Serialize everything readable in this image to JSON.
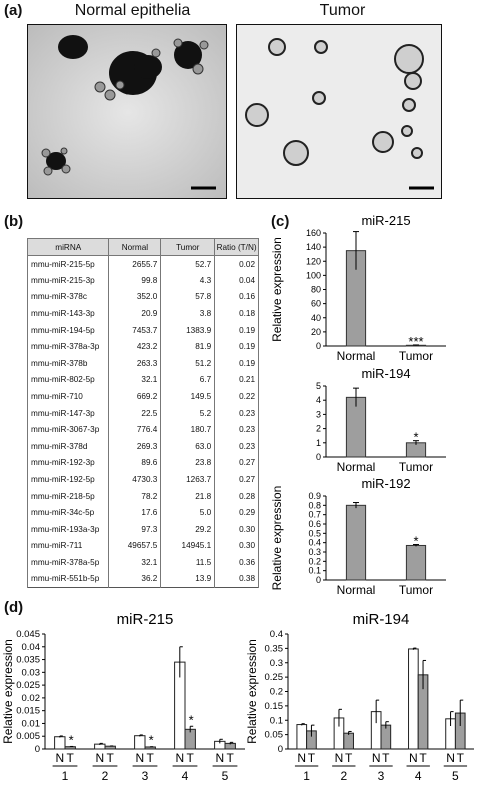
{
  "panels": {
    "a": "(a)",
    "b": "(b)",
    "c": "(c)",
    "d": "(d)"
  },
  "images": {
    "left_title": "Normal epithelia",
    "right_title": "Tumor"
  },
  "table": {
    "headers": [
      "miRNA",
      "Normal",
      "Tumor",
      "Ratio (T/N)"
    ],
    "rows": [
      [
        "mmu-miR-215-5p",
        "2655.7",
        "52.7",
        "0.02"
      ],
      [
        "mmu-miR-215-3p",
        "99.8",
        "4.3",
        "0.04"
      ],
      [
        "mmu-miR-378c",
        "352.0",
        "57.8",
        "0.16"
      ],
      [
        "mmu-miR-143-3p",
        "20.9",
        "3.8",
        "0.18"
      ],
      [
        "mmu-miR-194-5p",
        "7453.7",
        "1383.9",
        "0.19"
      ],
      [
        "mmu-miR-378a-3p",
        "423.2",
        "81.9",
        "0.19"
      ],
      [
        "mmu-miR-378b",
        "263.3",
        "51.2",
        "0.19"
      ],
      [
        "mmu-miR-802-5p",
        "32.1",
        "6.7",
        "0.21"
      ],
      [
        "mmu-miR-710",
        "669.2",
        "149.5",
        "0.22"
      ],
      [
        "mmu-miR-147-3p",
        "22.5",
        "5.2",
        "0.23"
      ],
      [
        "mmu-miR-3067-3p",
        "776.4",
        "180.7",
        "0.23"
      ],
      [
        "mmu-miR-378d",
        "269.3",
        "63.0",
        "0.23"
      ],
      [
        "mmu-miR-192-3p",
        "89.6",
        "23.8",
        "0.27"
      ],
      [
        "mmu-miR-192-5p",
        "4730.3",
        "1263.7",
        "0.27"
      ],
      [
        "mmu-miR-218-5p",
        "78.2",
        "21.8",
        "0.28"
      ],
      [
        "mmu-miR-34c-5p",
        "17.6",
        "5.0",
        "0.29"
      ],
      [
        "mmu-miR-193a-3p",
        "97.3",
        "29.2",
        "0.30"
      ],
      [
        "mmu-miR-711",
        "49657.5",
        "14945.1",
        "0.30"
      ],
      [
        "mmu-miR-378a-5p",
        "32.1",
        "11.5",
        "0.36"
      ],
      [
        "mmu-miR-551b-5p",
        "36.2",
        "13.9",
        "0.38"
      ]
    ]
  },
  "chart_data": [
    {
      "type": "bar",
      "title": "miR-215",
      "ylabel": "Relative expression",
      "categories": [
        "Normal",
        "Tumor"
      ],
      "values": [
        135,
        1
      ],
      "errors": [
        27,
        0.5
      ],
      "ylim": [
        0,
        160
      ],
      "yticks": [
        "0",
        "20",
        "40",
        "60",
        "80",
        "100",
        "120",
        "140",
        "160"
      ],
      "annotations": [
        "",
        "***"
      ],
      "color": "#9e9e9e"
    },
    {
      "type": "bar",
      "title": "miR-194",
      "ylabel": "",
      "categories": [
        "Normal",
        "Tumor"
      ],
      "values": [
        4.2,
        1.0
      ],
      "errors": [
        0.65,
        0.15
      ],
      "ylim": [
        0,
        5
      ],
      "yticks": [
        "0",
        "1",
        "2",
        "3",
        "4",
        "5"
      ],
      "annotations": [
        "",
        "*"
      ],
      "color": "#9e9e9e"
    },
    {
      "type": "bar",
      "title": "miR-192",
      "ylabel": "Relative expression",
      "categories": [
        "Normal",
        "Tumor"
      ],
      "values": [
        0.8,
        0.37
      ],
      "errors": [
        0.03,
        0.01
      ],
      "ylim": [
        0,
        0.9
      ],
      "yticks": [
        "0",
        "0.1",
        "0.2",
        "0.3",
        "0.4",
        "0.5",
        "0.6",
        "0.7",
        "0.8",
        "0.9"
      ],
      "annotations": [
        "",
        "*"
      ],
      "color": "#9e9e9e"
    },
    {
      "type": "bar",
      "title": "miR-215",
      "ylabel": "Relative expression",
      "categories": [
        "1",
        "2",
        "3",
        "4",
        "5"
      ],
      "sublabels": [
        "N",
        "T"
      ],
      "series": [
        {
          "values": [
            0.0048,
            0.0019,
            0.0052,
            0.034,
            0.003
          ],
          "errors": [
            0.0003,
            0.0003,
            0.0003,
            0.006,
            0.0008
          ],
          "color": "#ffffff"
        },
        {
          "values": [
            0.0009,
            0.0011,
            0.0008,
            0.0077,
            0.0022
          ],
          "errors": [
            0.0001,
            0.0001,
            0.0001,
            0.0012,
            0.0004
          ],
          "color": "#9e9e9e"
        }
      ],
      "annotations": [
        "*",
        "",
        "*",
        "*",
        ""
      ],
      "ylim": [
        0,
        0.045
      ],
      "yticks": [
        "0",
        "0.005",
        "0.01",
        "0.015",
        "0.02",
        "0.025",
        "0.03",
        "0.035",
        "0.04",
        "0.045"
      ]
    },
    {
      "type": "bar",
      "title": "miR-194",
      "ylabel": "Relative expression",
      "categories": [
        "1",
        "2",
        "3",
        "4",
        "5"
      ],
      "sublabels": [
        "N",
        "T"
      ],
      "series": [
        {
          "values": [
            0.085,
            0.108,
            0.13,
            0.348,
            0.105
          ],
          "errors": [
            0.003,
            0.03,
            0.04,
            0.003,
            0.025
          ],
          "color": "#ffffff"
        },
        {
          "values": [
            0.063,
            0.055,
            0.083,
            0.258,
            0.125
          ],
          "errors": [
            0.02,
            0.006,
            0.012,
            0.05,
            0.045
          ],
          "color": "#9e9e9e"
        }
      ],
      "annotations": [
        "",
        "",
        "",
        "",
        ""
      ],
      "ylim": [
        0,
        0.4
      ],
      "yticks": [
        "0",
        "0.05",
        "0.1",
        "0.15",
        "0.2",
        "0.25",
        "0.3",
        "0.35",
        "0.4"
      ]
    }
  ]
}
